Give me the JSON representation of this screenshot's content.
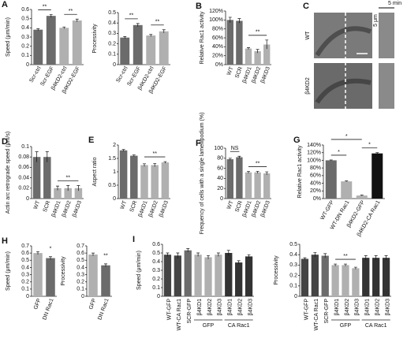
{
  "chart_data": [
    {
      "type": "bar",
      "panel": "A",
      "ylabel": "Speed (μm/min)",
      "categories": [
        "Scr-ctrl",
        "Scr-EGF",
        "β4KD2-ctrl",
        "β4KD2-EGF"
      ],
      "values": [
        0.38,
        0.53,
        0.4,
        0.48
      ],
      "errors": [
        0.01,
        0.015,
        0.01,
        0.015
      ],
      "colors": [
        "#6b6b6b",
        "#6b6b6b",
        "#b0b0b0",
        "#b0b0b0"
      ],
      "ylim": [
        0,
        0.6
      ],
      "yticks": [
        0,
        0.1,
        0.2,
        0.3,
        0.4,
        0.5,
        0.6
      ],
      "annotations": [
        "**",
        "**"
      ]
    },
    {
      "type": "bar",
      "ylabel": "Processivity",
      "categories": [
        "Scr-ctrl",
        "Scr-EGF",
        "β4KD2-ctrl",
        "β4KD2-EGF"
      ],
      "values": [
        0.26,
        0.38,
        0.28,
        0.32
      ],
      "errors": [
        0.01,
        0.015,
        0.01,
        0.015
      ],
      "colors": [
        "#6b6b6b",
        "#6b6b6b",
        "#b0b0b0",
        "#b0b0b0"
      ],
      "ylim": [
        0,
        0.5
      ],
      "yticks": [
        0,
        0.1,
        0.2,
        0.3,
        0.4,
        0.5
      ],
      "annotations": [
        "**",
        "**"
      ]
    },
    {
      "type": "bar",
      "panel": "B",
      "ylabel": "Relative Rac1 activity",
      "categories": [
        "WT",
        "SCR",
        "β4KD1",
        "β4KD2",
        "β4KD3"
      ],
      "values": [
        100,
        98,
        36,
        30,
        45
      ],
      "errors": [
        6,
        5,
        2,
        4,
        10
      ],
      "colors": [
        "#6b6b6b",
        "#6b6b6b",
        "#b0b0b0",
        "#b0b0b0",
        "#b0b0b0"
      ],
      "ylim": [
        0,
        120
      ],
      "yticks": [
        {
          "value": 0,
          "label": "0%"
        },
        {
          "value": 20,
          "label": "20%"
        },
        {
          "value": 40,
          "label": "40%"
        },
        {
          "value": 60,
          "label": "60%"
        },
        {
          "value": 80,
          "label": "80%"
        },
        {
          "value": 100,
          "label": "100%"
        },
        {
          "value": 120,
          "label": "120%"
        }
      ],
      "annotations": [
        "**"
      ]
    },
    {
      "type": "bar",
      "panel": "D",
      "ylabel": "Actin arc retrograde speed (μm/s)",
      "categories": [
        "WT",
        "SCR",
        "β4KD1",
        "β4KD2",
        "β4KD3"
      ],
      "values": [
        0.08,
        0.08,
        0.02,
        0.02,
        0.02
      ],
      "errors": [
        0.01,
        0.01,
        0.004,
        0.005,
        0.005
      ],
      "colors": [
        "#6b6b6b",
        "#6b6b6b",
        "#b0b0b0",
        "#b0b0b0",
        "#b0b0b0"
      ],
      "ylim": [
        0,
        0.1
      ],
      "yticks": [
        0,
        0.02,
        0.04,
        0.06,
        0.08,
        0.1
      ],
      "annotations": [
        "**"
      ]
    },
    {
      "type": "bar",
      "panel": "E",
      "ylabel": "Aspect ratio",
      "categories": [
        "WT",
        "SCR",
        "β4KD1",
        "β4KD2",
        "β4KD3"
      ],
      "values": [
        1.8,
        1.6,
        1.25,
        1.25,
        1.35
      ],
      "errors": [
        0.03,
        0.03,
        0.05,
        0.06,
        0.03
      ],
      "colors": [
        "#6b6b6b",
        "#6b6b6b",
        "#b0b0b0",
        "#b0b0b0",
        "#b0b0b0"
      ],
      "ylim": [
        0,
        2
      ],
      "yticks": [
        0,
        0.5,
        1,
        1.5,
        2
      ],
      "annotations": [
        "**"
      ]
    },
    {
      "type": "bar",
      "panel": "F",
      "ylabel": "Frequency of cells with a single lamellipodium (%)",
      "categories": [
        "WT",
        "SCR",
        "β4KD1",
        "β4KD2",
        "β4KD3"
      ],
      "values": [
        78,
        82,
        52,
        52,
        50
      ],
      "errors": [
        2,
        2,
        2,
        2,
        3
      ],
      "colors": [
        "#6b6b6b",
        "#6b6b6b",
        "#b0b0b0",
        "#b0b0b0",
        "#b0b0b0"
      ],
      "ylim": [
        0,
        100
      ],
      "yticks": [
        0,
        20,
        40,
        60,
        80,
        100
      ],
      "annotations": [
        "NS",
        "**"
      ]
    },
    {
      "type": "bar",
      "panel": "G",
      "ylabel": "Relative Rac1 activity",
      "categories": [
        "WT-GFP",
        "WT-DN Rac1",
        "β4KD2-GFP",
        "β4KD2-CA Rac1"
      ],
      "values": [
        100,
        45,
        8,
        118
      ],
      "errors": [
        1,
        1,
        1,
        2
      ],
      "colors": [
        "#6b6b6b",
        "#b0b0b0",
        "#b0b0b0",
        "#111111"
      ],
      "ylim": [
        0,
        140
      ],
      "yticks": [
        {
          "value": 0,
          "label": "0%"
        },
        {
          "value": 20,
          "label": "20%"
        },
        {
          "value": 40,
          "label": "40%"
        },
        {
          "value": 60,
          "label": "60%"
        },
        {
          "value": 80,
          "label": "80%"
        },
        {
          "value": 100,
          "label": "100%"
        },
        {
          "value": 120,
          "label": "120%"
        },
        {
          "value": 140,
          "label": "140%"
        }
      ],
      "annotations": [
        "*",
        "*",
        "*"
      ]
    },
    {
      "type": "bar",
      "panel": "H",
      "ylabel": "Speed (μm/min)",
      "categories": [
        "GFP",
        "DN Rac1"
      ],
      "values": [
        0.6,
        0.53
      ],
      "errors": [
        0.02,
        0.02
      ],
      "colors": [
        "#b0b0b0",
        "#6b6b6b"
      ],
      "ylim": [
        0,
        0.7
      ],
      "yticks": [
        0,
        0.1,
        0.2,
        0.3,
        0.4,
        0.5,
        0.6,
        0.7
      ],
      "annotations": [
        "*"
      ]
    },
    {
      "type": "bar",
      "ylabel": "Processivity",
      "categories": [
        "GFP",
        "DN Rac1"
      ],
      "values": [
        0.58,
        0.43
      ],
      "errors": [
        0.02,
        0.02
      ],
      "colors": [
        "#b0b0b0",
        "#6b6b6b"
      ],
      "ylim": [
        0,
        0.7
      ],
      "yticks": [
        0,
        0.1,
        0.2,
        0.3,
        0.4,
        0.5,
        0.6,
        0.7
      ],
      "annotations": [
        "**"
      ]
    },
    {
      "type": "bar",
      "panel": "I",
      "ylabel": "Speed (μm/min)",
      "categories": [
        "WT-GFP",
        "WT-CA Rac1",
        "SCR-GFP",
        "β4KD1",
        "β4KD2",
        "β4KD3",
        "β4KD1",
        "β4KD2",
        "β4KD3"
      ],
      "values": [
        0.48,
        0.47,
        0.53,
        0.48,
        0.45,
        0.48,
        0.5,
        0.39,
        0.46
      ],
      "errors": [
        0.02,
        0.03,
        0.02,
        0.02,
        0.02,
        0.02,
        0.03,
        0.02,
        0.02
      ],
      "colors": [
        "#444444",
        "#444444",
        "#6b6b6b",
        "#b0b0b0",
        "#b0b0b0",
        "#b0b0b0",
        "#333333",
        "#333333",
        "#333333"
      ],
      "ylim": [
        0,
        0.6
      ],
      "yticks": [
        0,
        0.1,
        0.2,
        0.3,
        0.4,
        0.5,
        0.6
      ],
      "group_labels": [
        "GFP",
        "CA Rac1"
      ]
    },
    {
      "type": "bar",
      "ylabel": "Processivity",
      "categories": [
        "WT-GFP",
        "WT-CA Rac1",
        "SCR-GFP",
        "β4KD1",
        "β4KD2",
        "β4KD3",
        "β4KD1",
        "β4KD2",
        "β4KD3"
      ],
      "values": [
        0.36,
        0.4,
        0.39,
        0.3,
        0.3,
        0.27,
        0.37,
        0.37,
        0.37
      ],
      "errors": [
        0.01,
        0.02,
        0.02,
        0.01,
        0.01,
        0.01,
        0.02,
        0.02,
        0.02
      ],
      "colors": [
        "#444444",
        "#444444",
        "#6b6b6b",
        "#b0b0b0",
        "#b0b0b0",
        "#b0b0b0",
        "#333333",
        "#333333",
        "#333333"
      ],
      "ylim": [
        0,
        0.5
      ],
      "yticks": [
        0,
        0.1,
        0.2,
        0.3,
        0.4,
        0.5
      ],
      "group_labels": [
        "GFP",
        "CA Rac1"
      ],
      "annotations": [
        "**"
      ]
    }
  ],
  "images": {
    "panel": "C",
    "rows": [
      "WT",
      "β4KD2"
    ],
    "scale_label": "5 μm",
    "time_label": "5 min"
  }
}
